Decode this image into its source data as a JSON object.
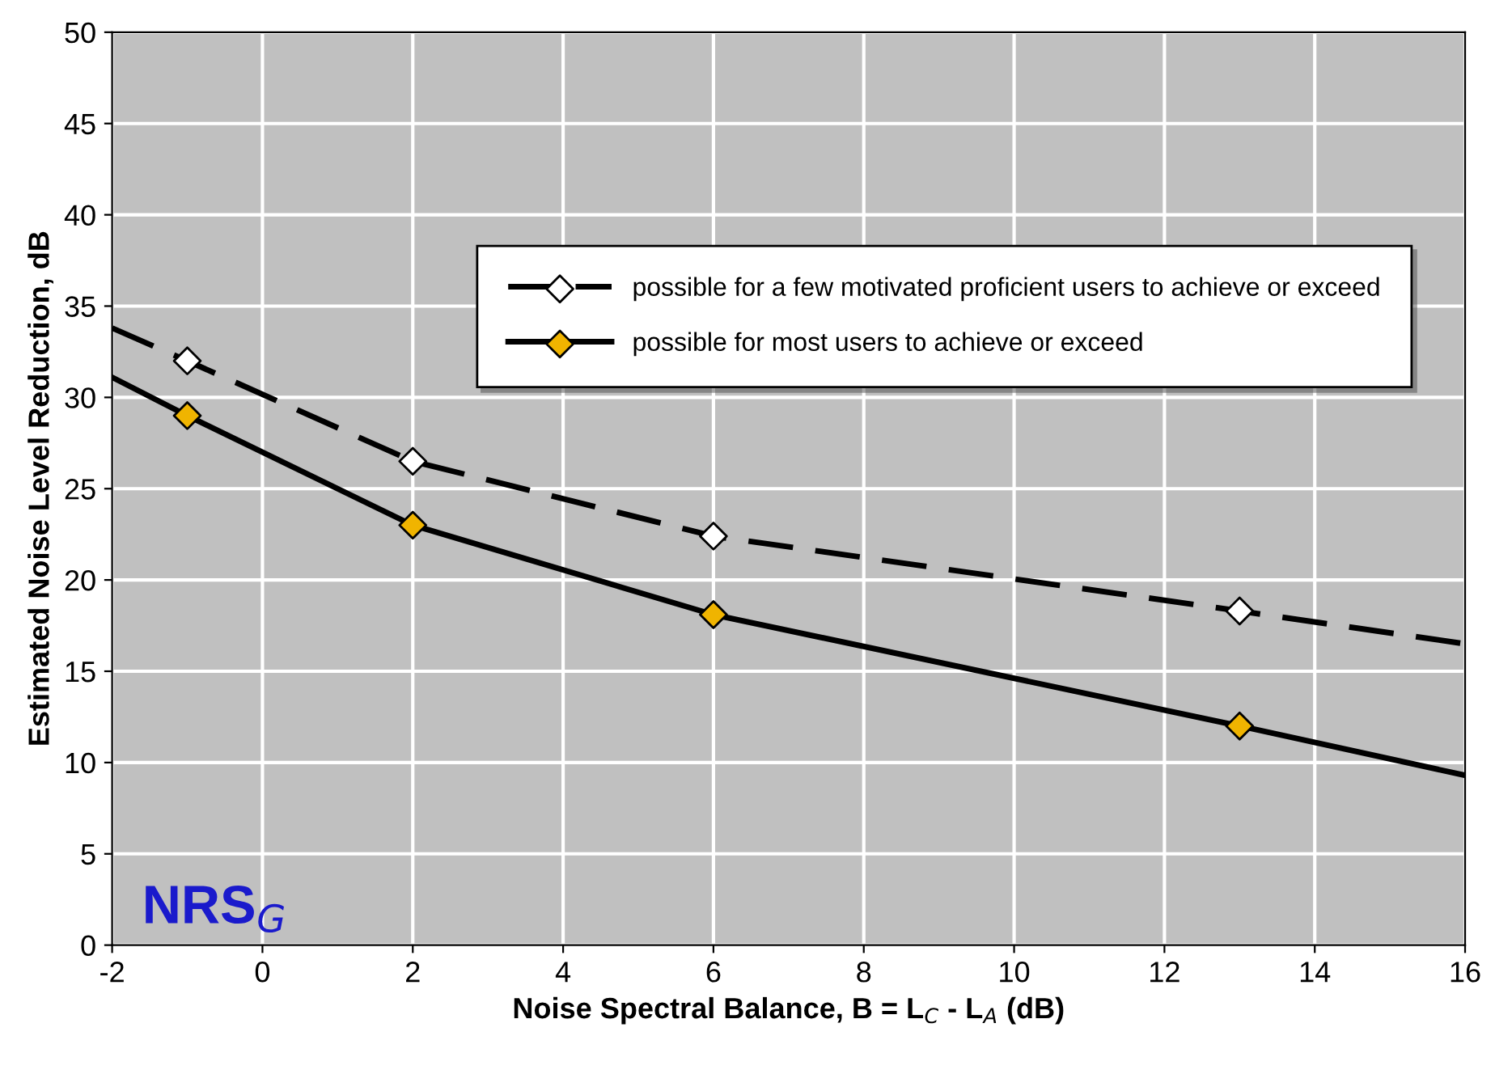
{
  "chart_data": {
    "type": "line",
    "xlabel": "Noise Spectral Balance, B = L$_{C}$ - L$_{A}$ (dB)",
    "ylabel": "Estimated Noise Level Reduction, dB",
    "annotations": [
      "NRS$_{G}$"
    ],
    "series": [
      {
        "name": "possible for a few motivated proficient users to achieve or exceed",
        "color": "#000000",
        "line_style": "dashed",
        "marker": "none",
        "x": [
          -2,
          -1,
          2,
          6,
          13,
          16
        ],
        "values": [
          33.8,
          32,
          26.5,
          22.4,
          18.3,
          16.5
        ]
      },
      {
        "type": "scatter",
        "color": "#ffffff",
        "marker": "diamond",
        "x": [
          -1,
          2,
          6,
          13
        ],
        "values": [
          32,
          26.5,
          22.4,
          18.3
        ]
      },
      {
        "name": "possible for most users to achieve or exceed",
        "color": "#000000",
        "line_style": "solid",
        "marker": "none",
        "x": [
          -2,
          -1,
          2,
          6,
          13,
          16
        ],
        "values": [
          31.1,
          29,
          23,
          18.1,
          12,
          9.3
        ]
      },
      {
        "type": "scatter",
        "color": "#f0b400",
        "marker": "diamond",
        "x": [
          -1,
          2,
          6,
          13
        ],
        "values": [
          29,
          23,
          18.1,
          12
        ]
      }
    ],
    "xlim": [
      -2,
      16
    ],
    "xticks": [
      -2,
      0,
      2,
      4,
      6,
      8,
      10,
      12,
      14,
      16
    ],
    "ylim": [
      0,
      50
    ],
    "yticks": [
      0,
      5,
      10,
      15,
      20,
      25,
      30,
      35,
      40,
      45,
      50
    ],
    "grid": true,
    "legend": "top right"
  }
}
